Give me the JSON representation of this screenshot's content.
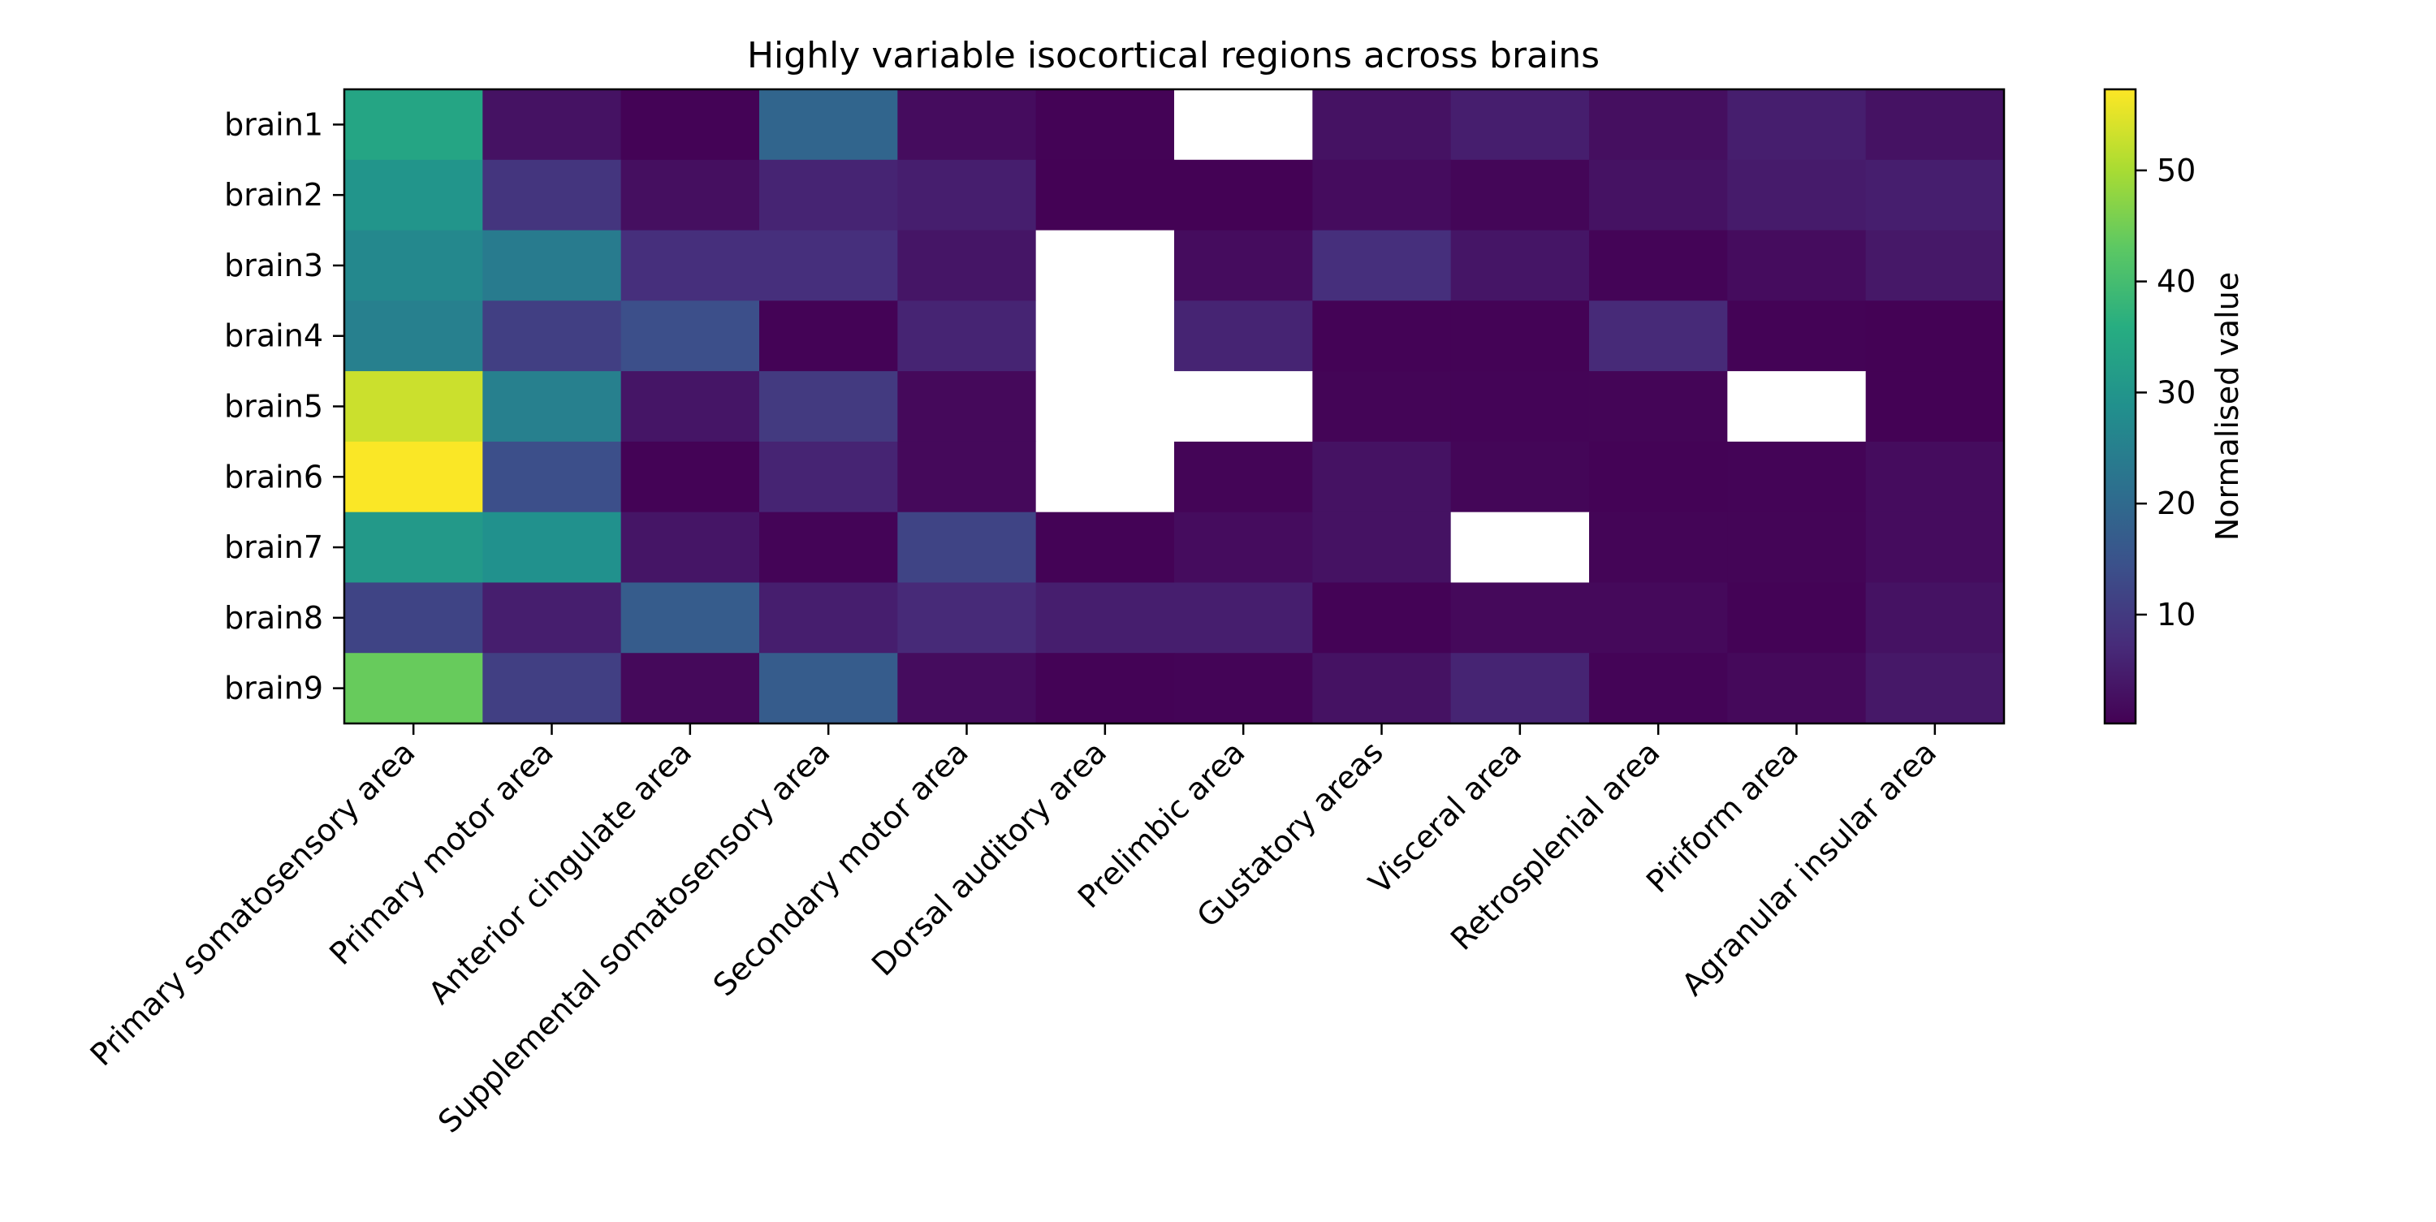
{
  "chart_data": {
    "type": "heatmap",
    "title": "Highly variable isocortical regions across brains",
    "xlabel": "",
    "ylabel": "",
    "x_categories": [
      "Primary somatosensory area",
      "Primary motor area",
      "Anterior cingulate area",
      "Supplemental somatosensory area",
      "Secondary motor area",
      "Dorsal auditory area",
      "Prelimbic area",
      "Gustatory areas",
      "Visceral area",
      "Retrosplenial area",
      "Piriform area",
      "Agranular insular area"
    ],
    "y_categories": [
      "brain1",
      "brain2",
      "brain3",
      "brain4",
      "brain5",
      "brain6",
      "brain7",
      "brain8",
      "brain9"
    ],
    "values": [
      [
        34,
        3,
        0.5,
        19,
        2,
        0.6,
        null,
        3,
        5,
        2.5,
        5,
        3
      ],
      [
        30,
        9,
        2.5,
        6,
        5,
        0.4,
        0.3,
        2,
        1,
        3,
        4.5,
        5
      ],
      [
        27,
        24,
        8,
        8,
        3.5,
        null,
        2,
        8,
        3.5,
        0.7,
        2,
        4
      ],
      [
        25,
        11,
        14,
        0.5,
        6,
        null,
        6,
        0.5,
        0.5,
        7,
        0.5,
        0.3
      ],
      [
        53,
        25,
        3.5,
        10,
        1.5,
        null,
        null,
        0.8,
        0.7,
        0.8,
        null,
        0.4
      ],
      [
        57,
        14,
        0.5,
        6,
        1.5,
        null,
        0.8,
        3,
        1,
        0.6,
        0.7,
        2
      ],
      [
        31,
        29,
        3.5,
        0.7,
        12,
        0.5,
        2,
        3,
        null,
        0.8,
        0.8,
        2
      ],
      [
        12,
        5,
        17,
        5,
        7,
        5,
        5,
        0.6,
        1.5,
        1.5,
        0.6,
        3
      ],
      [
        44,
        11,
        1.5,
        17,
        2,
        0.5,
        0.7,
        3,
        6,
        0.7,
        1.5,
        4
      ]
    ],
    "missing_color": "#ffffff",
    "colormap": "viridis",
    "colorbar": {
      "label": "Normalised value",
      "min": 0.2,
      "max": 57.3,
      "ticks": [
        10,
        20,
        30,
        40,
        50
      ]
    },
    "grid": false
  }
}
